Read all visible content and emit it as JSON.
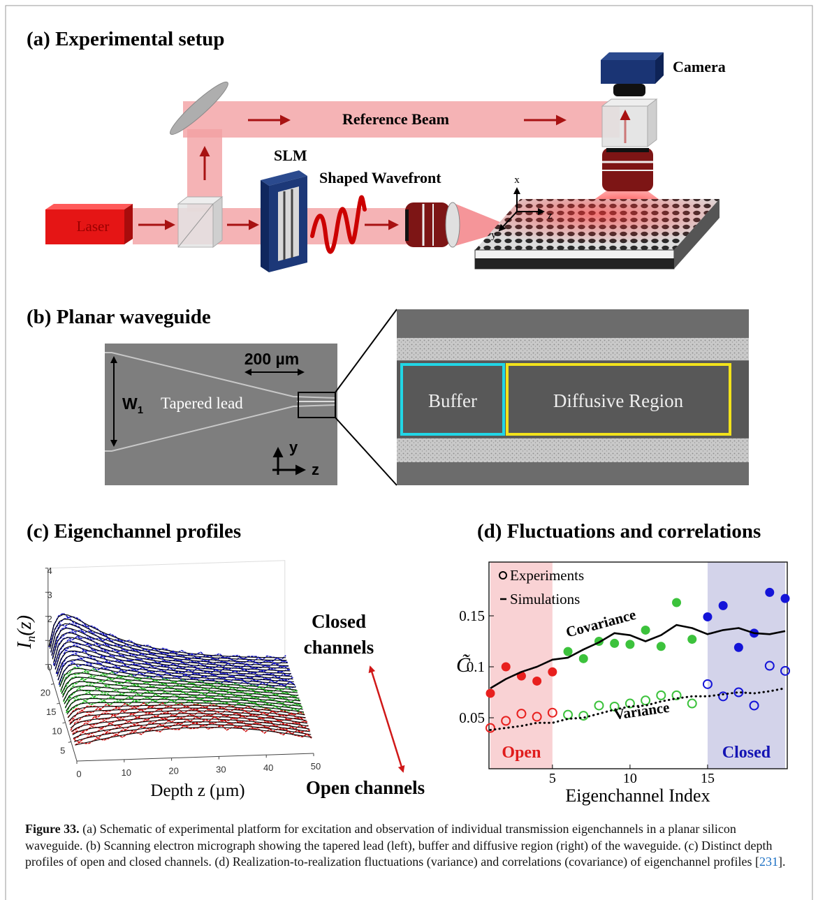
{
  "panel_a": {
    "title": "(a) Experimental setup",
    "labels": {
      "camera": "Camera",
      "reference_beam": "Reference Beam",
      "slm": "SLM",
      "shaped_wavefront": "Shaped Wavefront",
      "laser": "Laser",
      "axis_x": "x",
      "axis_z": "z",
      "axis_y": "y"
    }
  },
  "panel_b": {
    "title": "(b) Planar waveguide",
    "scale_bar": "200 µm",
    "width_label": {
      "main": "W",
      "sub": "1"
    },
    "tapered_lead": "Tapered lead",
    "axis_y": "y",
    "axis_z": "z",
    "buffer": "Buffer",
    "diffusive_region": "Diffusive Region"
  },
  "panel_c": {
    "title": "(c) Eigenchannel profiles",
    "ylabel": {
      "main": "I",
      "sub": "n",
      "rest": "(z)"
    },
    "xlabel": "Depth z (µm)",
    "xticks": [
      0,
      10,
      20,
      30,
      40,
      50
    ],
    "zticks": [
      0,
      1,
      2,
      3,
      4
    ],
    "depth_ticks": [
      5,
      10,
      15,
      20
    ],
    "closed_label": [
      "Closed",
      "channels"
    ],
    "open_label": "Open channels"
  },
  "chart_data": {
    "type": "scatter",
    "title": "(d) Fluctuations and correlations",
    "xlabel": "Eigenchannel Index",
    "ylabel": "C̃",
    "x": [
      1,
      2,
      3,
      4,
      5,
      6,
      7,
      8,
      9,
      10,
      11,
      12,
      13,
      14,
      15,
      16,
      17,
      18,
      19,
      20
    ],
    "xlim": [
      1,
      20
    ],
    "ylim": [
      0,
      0.2
    ],
    "xticks": [
      5,
      10,
      15
    ],
    "yticks": [
      0.05,
      0.1,
      0.15
    ],
    "legend_position": "upper left",
    "legend": [
      {
        "label": "Experiments",
        "marker": "open-circle"
      },
      {
        "label": "Simulations",
        "marker": "line"
      }
    ],
    "regions": [
      {
        "label": "Open",
        "x": [
          1,
          5
        ],
        "color": "#f9d2d4",
        "label_color": "#e01c1c"
      },
      {
        "label": "Closed",
        "x": [
          15,
          20
        ],
        "color": "#d3d3ea",
        "label_color": "#1414b4"
      }
    ],
    "annotations": [
      "Covariance",
      "Variance"
    ],
    "series": [
      {
        "kind": "points",
        "filled": true,
        "values": [
          0.074,
          0.1,
          0.091,
          0.086,
          0.095,
          0.115,
          0.108,
          0.125,
          0.123,
          0.122,
          0.136,
          0.12,
          0.163,
          0.127,
          0.149,
          0.16,
          0.119,
          0.133,
          0.173,
          0.167
        ],
        "colors": [
          "#e8201e",
          "#e8201e",
          "#e8201e",
          "#e8201e",
          "#e8201e",
          "#3cc23c",
          "#3cc23c",
          "#3cc23c",
          "#3cc23c",
          "#3cc23c",
          "#3cc23c",
          "#3cc23c",
          "#3cc23c",
          "#3cc23c",
          "#1414d8",
          "#1414d8",
          "#1414d8",
          "#1414d8",
          "#1414d8",
          "#1414d8"
        ]
      },
      {
        "kind": "points",
        "filled": false,
        "values": [
          0.04,
          0.047,
          0.054,
          0.051,
          0.055,
          0.053,
          0.052,
          0.062,
          0.061,
          0.064,
          0.067,
          0.072,
          0.072,
          0.064,
          0.083,
          0.071,
          0.075,
          0.062,
          0.101,
          0.096
        ],
        "colors": [
          "#e8201e",
          "#e8201e",
          "#e8201e",
          "#e8201e",
          "#e8201e",
          "#3cc23c",
          "#3cc23c",
          "#3cc23c",
          "#3cc23c",
          "#3cc23c",
          "#3cc23c",
          "#3cc23c",
          "#3cc23c",
          "#3cc23c",
          "#1414d8",
          "#1414d8",
          "#1414d8",
          "#1414d8",
          "#1414d8",
          "#1414d8"
        ]
      },
      {
        "kind": "line",
        "dash": "solid",
        "color": "#000000",
        "values": [
          0.079,
          0.088,
          0.095,
          0.1,
          0.107,
          0.109,
          0.117,
          0.124,
          0.133,
          0.131,
          0.125,
          0.131,
          0.141,
          0.138,
          0.132,
          0.136,
          0.138,
          0.133,
          0.132,
          0.135
        ]
      },
      {
        "kind": "line",
        "dash": "dotted",
        "color": "#000000",
        "values": [
          0.038,
          0.04,
          0.042,
          0.045,
          0.045,
          0.049,
          0.05,
          0.054,
          0.058,
          0.061,
          0.062,
          0.066,
          0.069,
          0.071,
          0.071,
          0.073,
          0.075,
          0.074,
          0.076,
          0.079
        ]
      }
    ]
  },
  "caption": {
    "label": "Figure 33.",
    "text": "(a) Schematic of experimental platform for excitation and observation of individual transmission eigenchannels in a planar silicon waveguide. (b) Scanning electron micrograph showing the tapered lead (left), buffer and diffusive region (right) of the waveguide. (c) Distinct depth profiles of open and closed channels. (d) Realization-to-realization fluctuations (variance) and correlations (covariance) of eigenchannel profiles [",
    "ref": "231",
    "end": "]."
  }
}
